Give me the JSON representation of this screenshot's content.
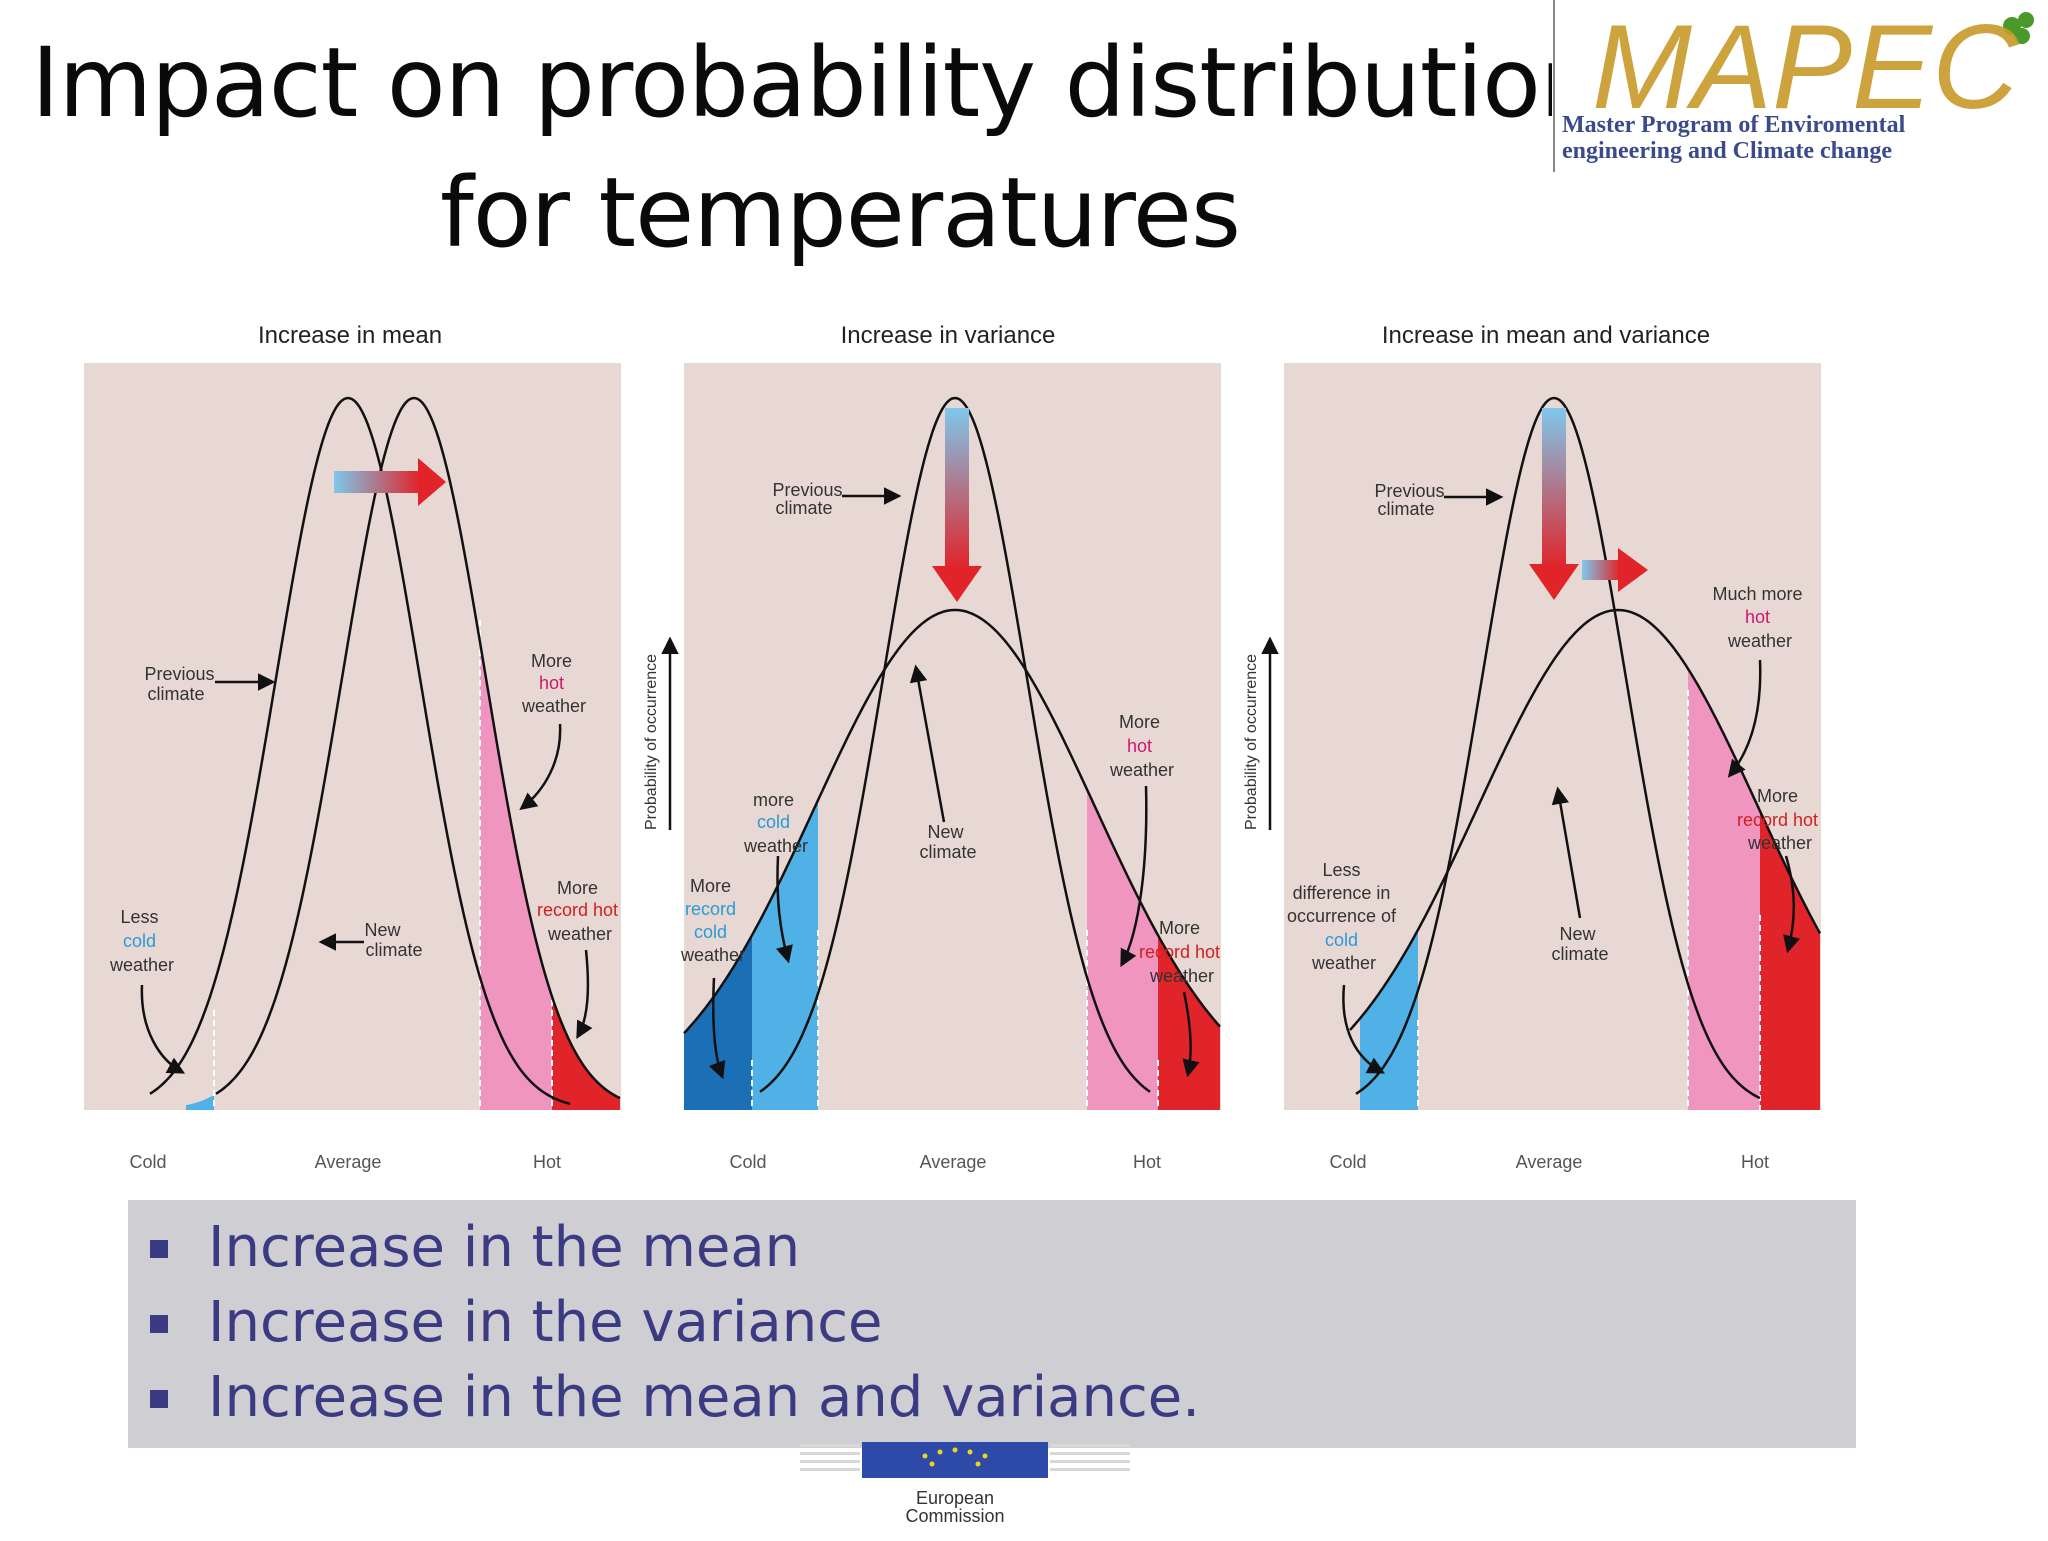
{
  "slide": {
    "title_line1": "Impact on probability distributions",
    "title_line2": "for temperatures"
  },
  "logo": {
    "wordmark": "MAPEC",
    "caption_line1": "Master Program of Enviromental",
    "caption_line2": "engineering and Climate change"
  },
  "y_axis_label": "Probability of occurrence",
  "x_axis": {
    "cold": "Cold",
    "average": "Average",
    "hot": "Hot"
  },
  "panels": [
    {
      "title": "Increase in mean",
      "labels": {
        "previous": [
          "Previous",
          "climate"
        ],
        "new": [
          "New",
          "climate"
        ],
        "less_cold": [
          "Less",
          "cold",
          "weather"
        ],
        "more_hot": [
          "More",
          "hot",
          "weather"
        ],
        "record_hot": [
          "More",
          "record hot",
          "weather"
        ]
      }
    },
    {
      "title": "Increase in variance",
      "labels": {
        "previous": [
          "Previous",
          "climate"
        ],
        "new": [
          "New",
          "climate"
        ],
        "more_cold": [
          "more",
          "cold",
          "weather"
        ],
        "record_cold": [
          "More",
          "record",
          "cold",
          "weather"
        ],
        "more_hot": [
          "More",
          "hot",
          "weather"
        ],
        "record_hot": [
          "More",
          "record hot",
          "weather"
        ]
      }
    },
    {
      "title": "Increase in mean and variance",
      "labels": {
        "previous": [
          "Previous",
          "climate"
        ],
        "new": [
          "New",
          "climate"
        ],
        "less_diff": [
          "Less",
          "difference in",
          "occurrence of",
          "cold",
          "weather"
        ],
        "much_more_hot": [
          "Much more",
          "hot",
          "weather"
        ],
        "record_hot": [
          "More",
          "record hot",
          "weather"
        ]
      }
    }
  ],
  "bullets": [
    "Increase in the mean",
    "Increase in the variance",
    "Increase in the mean and variance."
  ],
  "footer": {
    "eu_line1": "European",
    "eu_line2": "Commission"
  },
  "colors": {
    "panel_bg": "#e8d8d4",
    "cold": "#4fb1e6",
    "record_cold": "#1b6fb5",
    "hot": "#f094c0",
    "record_hot": "#e0242a",
    "text_cold": "#2a9ad8",
    "text_hot": "#d0176f",
    "text_record_hot": "#d02020",
    "bullet_text": "#3b3b83"
  }
}
